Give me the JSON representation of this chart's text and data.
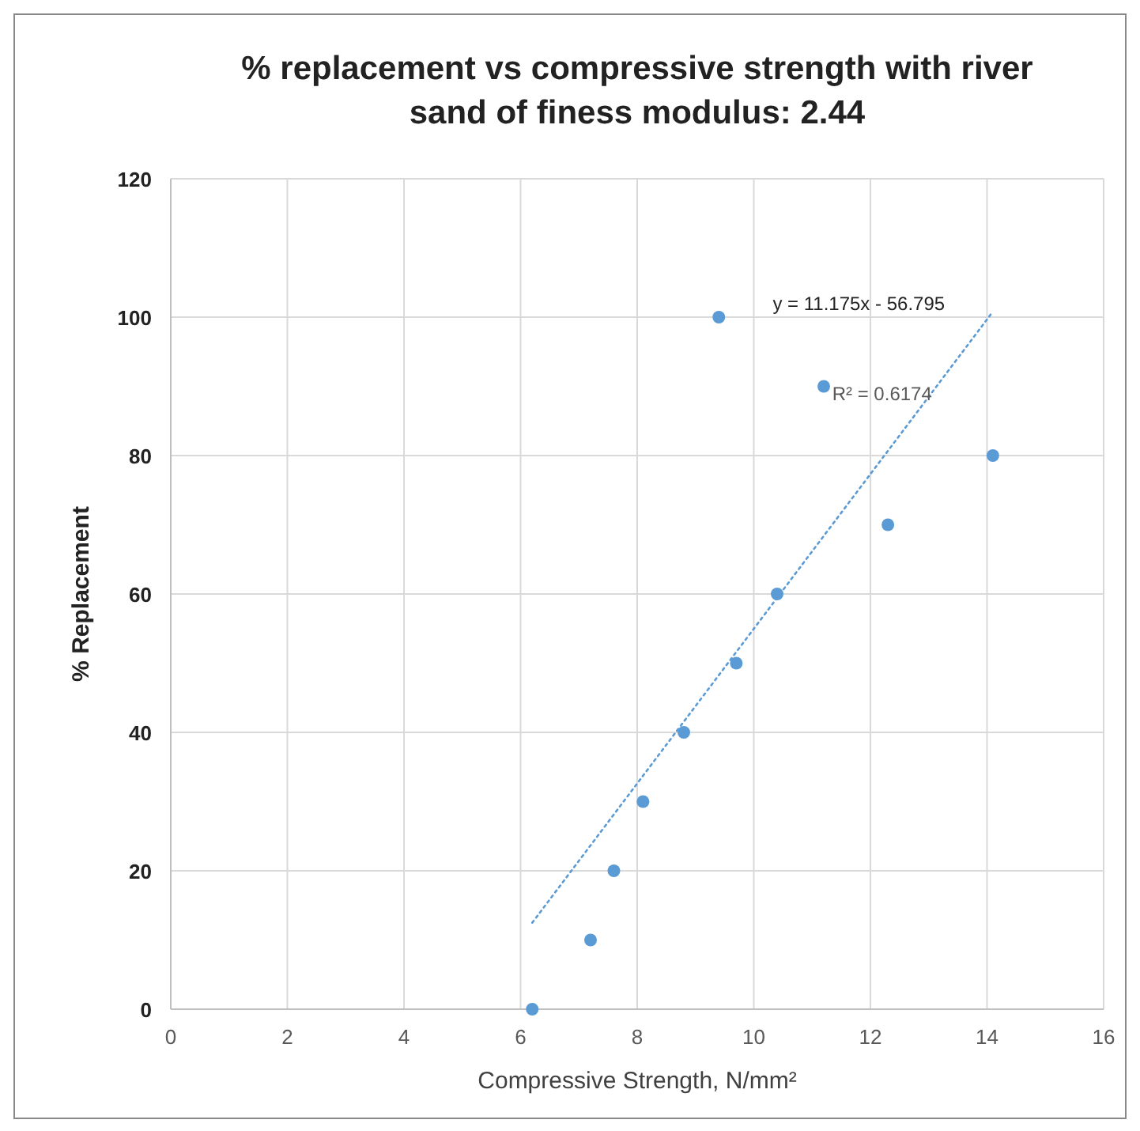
{
  "chart_data": {
    "type": "scatter",
    "title": "% replacement vs compressive strength with river sand of finess modulus: 2.44",
    "xlabel": "Compressive Strength, N/mm²",
    "ylabel": "% Replacement",
    "xlim": [
      0,
      16
    ],
    "xticks": [
      0,
      2,
      4,
      6,
      8,
      10,
      12,
      14,
      16
    ],
    "ylim": [
      0,
      120
    ],
    "yticks": [
      0,
      20,
      40,
      60,
      80,
      100,
      120
    ],
    "grid": true,
    "series": [
      {
        "color": "#5b9bd5",
        "marker": "circle",
        "x": [
          6.2,
          7.2,
          7.6,
          8.1,
          8.8,
          9.7,
          10.4,
          9.4,
          11.2,
          12.3,
          14.1
        ],
        "values": [
          0,
          10,
          20,
          30,
          40,
          50,
          60,
          100,
          90,
          70,
          80
        ]
      },
      {
        "type": "line",
        "color": "#5b9bd5",
        "line_style": "dotted",
        "marker": "none",
        "x": [
          6.2,
          14.1
        ],
        "values": [
          12.5,
          100.8
        ]
      }
    ],
    "annotations": [
      "y = 11.175x - 56.795",
      "R² = 0.6174"
    ]
  }
}
